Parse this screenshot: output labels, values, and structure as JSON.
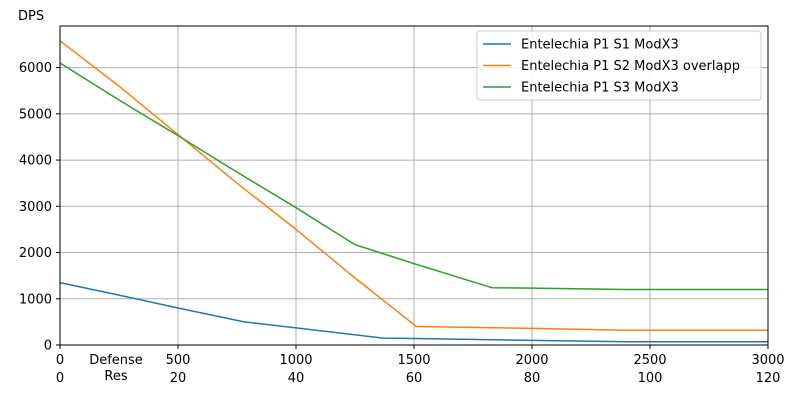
{
  "chart_data": {
    "type": "line",
    "ylabel": "DPS",
    "xlabel_lines": [
      "Defense",
      "Res"
    ],
    "xlim": [
      0,
      3000
    ],
    "ylim": [
      0,
      6900
    ],
    "grid": true,
    "legend_position": "top-right",
    "x_ticks": [
      0,
      500,
      1000,
      1500,
      2000,
      2500,
      3000
    ],
    "x_ticks_secondary": [
      0,
      20,
      40,
      60,
      80,
      100,
      120
    ],
    "y_ticks": [
      0,
      1000,
      2000,
      3000,
      4000,
      5000,
      6000
    ],
    "series": [
      {
        "name": "Entelechia P1 S1 ModX3",
        "color": "#1f77b4",
        "points": [
          [
            0,
            1350
          ],
          [
            250,
            1080
          ],
          [
            500,
            800
          ],
          [
            780,
            500
          ],
          [
            1000,
            370
          ],
          [
            1370,
            150
          ],
          [
            1500,
            140
          ],
          [
            2000,
            100
          ],
          [
            2400,
            70
          ],
          [
            3000,
            70
          ]
        ]
      },
      {
        "name": "Entelechia P1 S2 ModX3 overlapp",
        "color": "#ff7f0e",
        "points": [
          [
            0,
            6580
          ],
          [
            250,
            5600
          ],
          [
            500,
            4550
          ],
          [
            750,
            3500
          ],
          [
            1000,
            2500
          ],
          [
            1250,
            1450
          ],
          [
            1510,
            400
          ],
          [
            2000,
            360
          ],
          [
            2400,
            320
          ],
          [
            3000,
            320
          ]
        ]
      },
      {
        "name": "Entelechia P1 S3 ModX3",
        "color": "#2ca02c",
        "points": [
          [
            0,
            6100
          ],
          [
            250,
            5300
          ],
          [
            500,
            4530
          ],
          [
            750,
            3740
          ],
          [
            1000,
            2970
          ],
          [
            1250,
            2170
          ],
          [
            1500,
            1760
          ],
          [
            1830,
            1240
          ],
          [
            2000,
            1230
          ],
          [
            2400,
            1200
          ],
          [
            3000,
            1200
          ]
        ]
      }
    ]
  }
}
